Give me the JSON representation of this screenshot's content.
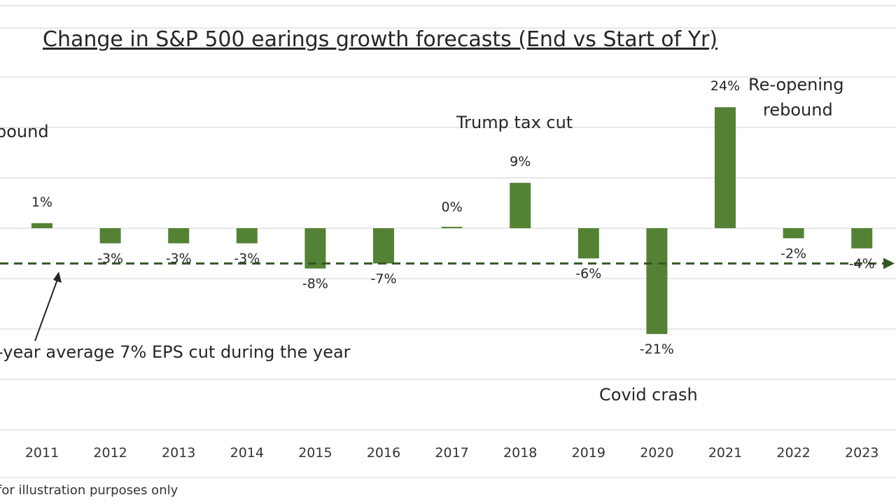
{
  "chart_data": {
    "type": "bar",
    "title": "Change in S&P 500 earings growth forecasts (End vs Start of Yr)",
    "xlabel": "",
    "ylabel": "",
    "categories": [
      "2011",
      "2012",
      "2013",
      "2014",
      "2015",
      "2016",
      "2017",
      "2018",
      "2019",
      "2020",
      "2021",
      "2022",
      "2023"
    ],
    "values": [
      1,
      -3,
      -3,
      -3,
      -8,
      -7,
      0,
      9,
      -6,
      -21,
      24,
      -2,
      -4
    ],
    "data_labels": [
      "1%",
      "-3%",
      "-3%",
      "-3%",
      "-8%",
      "-7%",
      "0%",
      "9%",
      "-6%",
      "-21%",
      "24%",
      "-2%",
      "-4%"
    ],
    "ylim": [
      -40,
      40
    ],
    "gridlines": true,
    "gridline_step": 10,
    "bar_color": "#548235",
    "average_line": {
      "value": -7,
      "style": "dashed",
      "color": "#375623",
      "label": "-year average 7% EPS cut during the year"
    },
    "annotations": [
      {
        "text": "bound",
        "near": "left edge"
      },
      {
        "text": "Trump tax cut",
        "near": "2018"
      },
      {
        "text": "Re-opening",
        "near": "2021"
      },
      {
        "text": "rebound",
        "near": "2021"
      },
      {
        "text": "Covid crash",
        "near": "2020"
      }
    ],
    "footnote": "for illustration purposes only",
    "colors": {
      "bar": "#548235",
      "average_line": "#375623",
      "grid": "#d9d9d9",
      "text": "#262626"
    }
  }
}
